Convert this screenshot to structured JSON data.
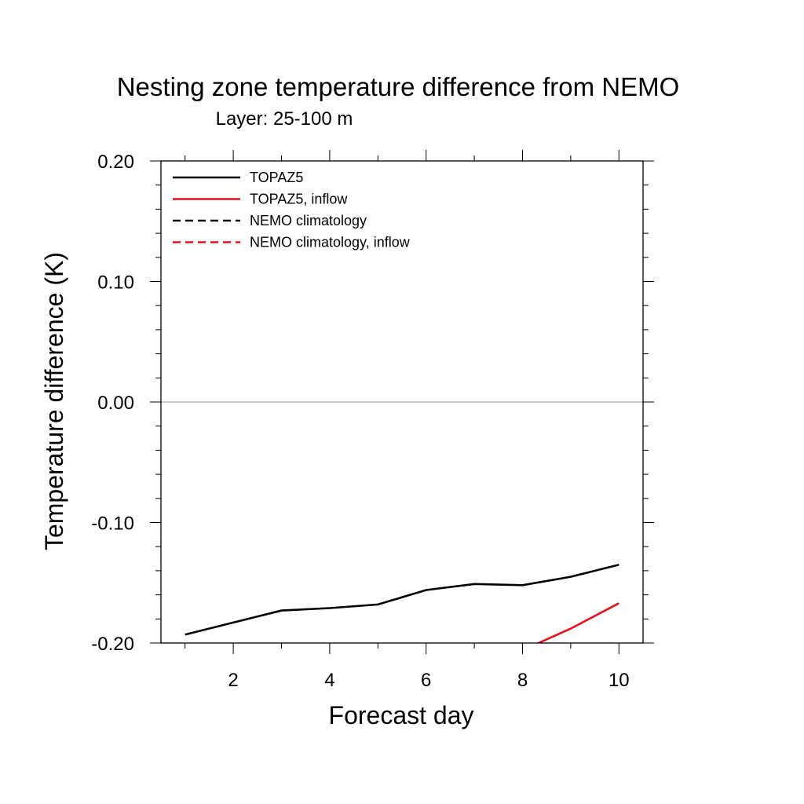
{
  "chart_data": {
    "type": "line",
    "title": "Nesting zone temperature difference from NEMO",
    "subtitle": "Layer: 25-100 m",
    "xlabel": "Forecast day",
    "ylabel": "Temperature difference (K)",
    "xlim": [
      0.5,
      10.5
    ],
    "ylim": [
      -0.2,
      0.2
    ],
    "xticks": [
      2,
      4,
      6,
      8,
      10
    ],
    "xtick_labels": [
      "2",
      "4",
      "6",
      "8",
      "10"
    ],
    "yticks": [
      -0.2,
      -0.1,
      0.0,
      0.1,
      0.2
    ],
    "ytick_labels": [
      "-0.20",
      "-0.10",
      "0.00",
      "0.10",
      "0.20"
    ],
    "reference_line": 0.0,
    "grid": false,
    "legend_position": "top-left",
    "series": [
      {
        "name": "TOPAZ5",
        "color": "#000000",
        "dash": "solid",
        "x": [
          1,
          2,
          3,
          4,
          5,
          6,
          7,
          8,
          9,
          10
        ],
        "y": [
          -0.193,
          -0.183,
          -0.173,
          -0.171,
          -0.168,
          -0.156,
          -0.151,
          -0.152,
          -0.145,
          -0.135
        ]
      },
      {
        "name": "TOPAZ5, inflow",
        "color": "#e8101a",
        "dash": "solid",
        "x": [
          8,
          9,
          10
        ],
        "y": [
          -0.206,
          -0.188,
          -0.167
        ]
      },
      {
        "name": "NEMO climatology",
        "color": "#000000",
        "dash": "dashed",
        "x": [],
        "y": []
      },
      {
        "name": "NEMO climatology, inflow",
        "color": "#e8101a",
        "dash": "dashed",
        "x": [],
        "y": []
      }
    ]
  }
}
